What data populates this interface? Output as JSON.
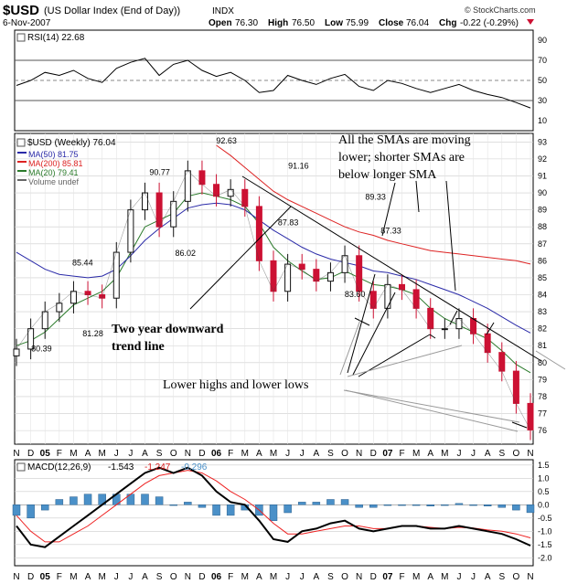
{
  "header": {
    "symbol": "$USD",
    "title": "(US Dollar Index (End of Day))",
    "exchange": "INDX",
    "date": "6-Nov-2007",
    "open_label": "Open",
    "open": "76.30",
    "high_label": "High",
    "high": "76.50",
    "low_label": "Low",
    "low": "75.99",
    "close_label": "Close",
    "close": "76.04",
    "chg_label": "Chg",
    "chg": "-0.22 (-0.29%)",
    "copyright": "© StockCharts.com"
  },
  "rsi_panel": {
    "label": "RSI(14) 22.68",
    "ticks": [
      90,
      70,
      50,
      30,
      10
    ],
    "ylim": [
      0,
      100
    ]
  },
  "price_panel": {
    "label": "$USD (Weekly) 76.04",
    "legend": [
      {
        "text": "MA(50) 81.75",
        "color": "#2a2aa8"
      },
      {
        "text": "MA(200) 85.81",
        "color": "#dd2222"
      },
      {
        "text": "MA(20) 79.41",
        "color": "#2a7a2a"
      },
      {
        "text": "Volume undef",
        "color": "#666666"
      }
    ],
    "ticks": [
      93,
      92,
      91,
      90,
      89,
      88,
      87,
      86,
      85,
      84,
      83,
      82,
      81,
      80,
      79,
      78,
      77,
      76
    ],
    "ylim": [
      75.2,
      93.5
    ],
    "price_labels": [
      {
        "text": "92.63",
        "x": 41,
        "y": 92.63
      },
      {
        "text": "91.16",
        "x": 55,
        "y": 91.16
      },
      {
        "text": "90.77",
        "x": 28,
        "y": 90.77
      },
      {
        "text": "89.33",
        "x": 70,
        "y": 89.33
      },
      {
        "text": "87.83",
        "x": 53,
        "y": 87.83
      },
      {
        "text": "87.33",
        "x": 73,
        "y": 87.33
      },
      {
        "text": "86.02",
        "x": 33,
        "y": 86.02
      },
      {
        "text": "85.44",
        "x": 13,
        "y": 85.44
      },
      {
        "text": "83.60",
        "x": 66,
        "y": 83.6
      },
      {
        "text": "81.28",
        "x": 15,
        "y": 81.28
      },
      {
        "text": "80.39",
        "x": 5,
        "y": 80.39
      }
    ],
    "annotations": {
      "sma_note_lines": [
        "All the SMAs are moving",
        "lower; shorter SMAs are",
        "below longer SMA"
      ],
      "trend_note_lines": [
        "Two year downward",
        "trend line"
      ],
      "lows_note": "Lower highs and lower lows"
    }
  },
  "macd_panel": {
    "label": "MACD(12,26,9)",
    "macd": "-1.543",
    "signal": "-1.247",
    "hist": "-0.296",
    "ticks": [
      "1.5",
      "1.0",
      "0.5",
      "0.0",
      "-0.5",
      "-1.0",
      "-1.5",
      "-2.0"
    ],
    "ylim": [
      -2.3,
      1.7
    ]
  },
  "x_axis": {
    "labels": [
      "N",
      "D",
      "05",
      "F",
      "M",
      "A",
      "M",
      "J",
      "J",
      "A",
      "S",
      "O",
      "N",
      "D",
      "06",
      "F",
      "M",
      "A",
      "M",
      "J",
      "J",
      "A",
      "S",
      "O",
      "N",
      "D",
      "07",
      "F",
      "M",
      "A",
      "M",
      "J",
      "J",
      "A",
      "S",
      "O",
      "N"
    ],
    "bold": [
      "05",
      "06",
      "07"
    ]
  },
  "colors": {
    "up": "#111111",
    "down": "#cc1133",
    "ma50": "#2a2aa8",
    "ma200": "#dd2222",
    "ma20": "#2a7a2a",
    "macd": "#000000",
    "signal": "#ee2222",
    "hist": "#4a90c8",
    "grid": "#cccccc"
  },
  "chart_data": {
    "type": "line",
    "title": "$USD (US Dollar Index (End of Day)) INDX",
    "x": [
      "N",
      "D",
      "05",
      "F",
      "M",
      "A",
      "M",
      "J",
      "J",
      "A",
      "S",
      "O",
      "N",
      "D",
      "06",
      "F",
      "M",
      "A",
      "M",
      "J",
      "J",
      "A",
      "S",
      "O",
      "N",
      "D",
      "07",
      "F",
      "M",
      "A",
      "M",
      "J",
      "J",
      "A",
      "S",
      "O",
      "N"
    ],
    "series": [
      {
        "name": "$USD (Weekly)",
        "values": [
          80.8,
          82.0,
          83.0,
          83.5,
          84.2,
          84.0,
          83.8,
          86.5,
          89.0,
          90.0,
          88.0,
          89.5,
          91.3,
          90.5,
          89.8,
          90.2,
          89.2,
          86.0,
          84.2,
          85.8,
          85.5,
          84.8,
          85.3,
          86.3,
          84.2,
          83.2,
          84.6,
          84.3,
          83.2,
          82.0,
          82.0,
          82.6,
          81.7,
          80.6,
          79.5,
          77.6,
          76.04
        ]
      },
      {
        "name": "MA(20)",
        "values": [
          81.0,
          81.3,
          81.8,
          82.6,
          83.4,
          83.8,
          84.2,
          85.0,
          86.5,
          88.0,
          88.4,
          88.8,
          89.8,
          90.0,
          89.8,
          89.6,
          89.2,
          88.2,
          86.8,
          86.0,
          85.4,
          84.9,
          85.0,
          85.4,
          85.0,
          84.6,
          84.5,
          84.3,
          84.0,
          83.2,
          82.6,
          82.2,
          81.8,
          81.4,
          80.7,
          79.9,
          79.41
        ]
      },
      {
        "name": "MA(50)",
        "values": [
          86.5,
          86.0,
          85.5,
          85.2,
          85.1,
          85.0,
          85.1,
          85.5,
          86.3,
          87.2,
          87.9,
          88.5,
          89.1,
          89.3,
          89.4,
          89.3,
          89.0,
          88.4,
          87.8,
          87.3,
          86.8,
          86.4,
          86.1,
          85.9,
          85.7,
          85.4,
          85.3,
          85.1,
          84.9,
          84.6,
          84.3,
          84.0,
          83.6,
          83.2,
          82.7,
          82.2,
          81.75
        ]
      },
      {
        "name": "MA(200)",
        "values": [
          null,
          null,
          null,
          null,
          null,
          null,
          null,
          null,
          null,
          null,
          null,
          null,
          null,
          null,
          92.8,
          92.2,
          91.5,
          90.8,
          90.1,
          89.6,
          89.2,
          88.8,
          88.4,
          88.0,
          87.7,
          87.5,
          87.2,
          87.0,
          86.8,
          86.6,
          86.5,
          86.4,
          86.3,
          86.2,
          86.1,
          86.0,
          85.81
        ]
      }
    ],
    "rsi": {
      "name": "RSI(14)",
      "values": [
        45,
        50,
        58,
        55,
        60,
        52,
        48,
        62,
        68,
        72,
        55,
        66,
        70,
        60,
        54,
        58,
        50,
        38,
        40,
        55,
        50,
        46,
        52,
        56,
        44,
        40,
        50,
        47,
        42,
        38,
        42,
        46,
        40,
        36,
        33,
        28,
        22.68
      ]
    },
    "macd": {
      "name": "MACD",
      "values": [
        -0.8,
        -1.5,
        -1.6,
        -1.2,
        -0.8,
        -0.4,
        0.0,
        0.4,
        0.8,
        1.2,
        1.4,
        1.2,
        1.4,
        1.1,
        0.5,
        0.1,
        0.0,
        -0.6,
        -1.3,
        -1.4,
        -1.0,
        -0.9,
        -0.7,
        -0.6,
        -0.9,
        -1.0,
        -0.9,
        -0.8,
        -0.8,
        -0.9,
        -0.9,
        -0.8,
        -0.9,
        -1.0,
        -1.1,
        -1.3,
        -1.543
      ]
    },
    "signal": {
      "name": "Signal",
      "values": [
        -0.4,
        -1.0,
        -1.4,
        -1.4,
        -1.1,
        -0.8,
        -0.4,
        0.0,
        0.4,
        0.8,
        1.1,
        1.2,
        1.3,
        1.2,
        0.9,
        0.5,
        0.2,
        -0.2,
        -0.7,
        -1.1,
        -1.1,
        -1.0,
        -0.9,
        -0.8,
        -0.8,
        -0.9,
        -0.9,
        -0.8,
        -0.8,
        -0.85,
        -0.9,
        -0.85,
        -0.88,
        -0.95,
        -1.0,
        -1.1,
        -1.247
      ]
    },
    "ylabel": "",
    "xlabel": "",
    "ylim": [
      75.2,
      93.5
    ],
    "grid": true,
    "legend": "top-left"
  }
}
